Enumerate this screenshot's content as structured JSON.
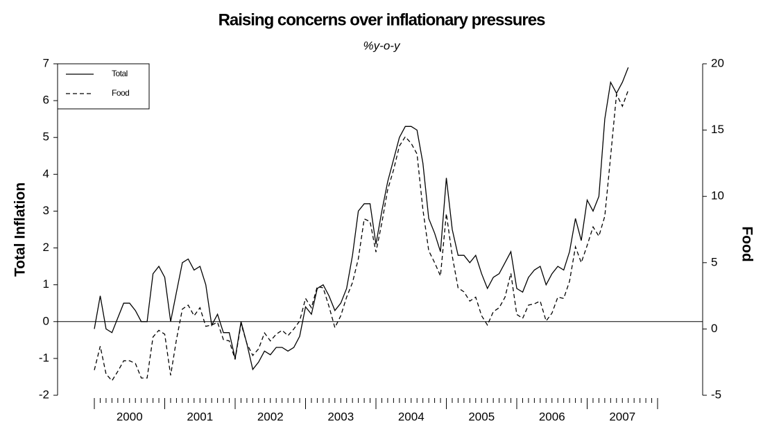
{
  "chart_data": {
    "type": "line",
    "title": "Raising concerns over inflationary pressures",
    "subtitle": "%y-o-y",
    "y_label": "Total Inflation",
    "y2_label": "Food",
    "categories": [
      "2000",
      null,
      null,
      null,
      null,
      null,
      null,
      null,
      null,
      null,
      null,
      null,
      "2001",
      null,
      null,
      null,
      null,
      null,
      null,
      null,
      null,
      null,
      null,
      null,
      "2002",
      null,
      null,
      null,
      null,
      null,
      null,
      null,
      null,
      null,
      null,
      null,
      "2003",
      null,
      null,
      null,
      null,
      null,
      null,
      null,
      null,
      null,
      null,
      null,
      "2004",
      null,
      null,
      null,
      null,
      null,
      null,
      null,
      null,
      null,
      null,
      null,
      "2005",
      null,
      null,
      null,
      null,
      null,
      null,
      null,
      null,
      null,
      null,
      null,
      "2006",
      null,
      null,
      null,
      null,
      null,
      null,
      null,
      null,
      null,
      null,
      null,
      "2007",
      null,
      null,
      null,
      null,
      null,
      null,
      null
    ],
    "series": [
      {
        "name": "Total",
        "color": "#000000",
        "line_style": "solid",
        "axis": "y",
        "values": [
          -0.2,
          0.7,
          -0.2,
          -0.3,
          0.1,
          0.5,
          0.5,
          0.3,
          0.0,
          0.0,
          1.3,
          1.5,
          1.2,
          0.0,
          0.8,
          1.6,
          1.7,
          1.4,
          1.5,
          1.0,
          -0.1,
          0.2,
          -0.3,
          -0.3,
          -1.0,
          0.0,
          -0.6,
          -1.3,
          -1.1,
          -0.8,
          -0.9,
          -0.7,
          -0.7,
          -0.8,
          -0.7,
          -0.4,
          0.4,
          0.2,
          0.9,
          1.0,
          0.7,
          0.3,
          0.5,
          0.9,
          1.8,
          3.0,
          3.2,
          3.2,
          2.1,
          3.0,
          3.8,
          4.4,
          5.0,
          5.3,
          5.3,
          5.2,
          4.3,
          2.8,
          2.4,
          1.9,
          3.9,
          2.5,
          1.8,
          1.8,
          1.6,
          1.8,
          1.3,
          0.9,
          1.2,
          1.3,
          1.6,
          1.9,
          0.9,
          0.8,
          1.2,
          1.4,
          1.5,
          1.0,
          1.3,
          1.5,
          1.4,
          1.9,
          2.8,
          2.2,
          3.3,
          3.0,
          3.4,
          5.5,
          6.5,
          6.2,
          6.5,
          6.9
        ]
      },
      {
        "name": "Food",
        "color": "#000000",
        "line_style": "dashed",
        "axis": "y2",
        "values": [
          -3.1,
          -1.3,
          -3.4,
          -3.9,
          -3.2,
          -2.4,
          -2.4,
          -2.6,
          -3.7,
          -3.7,
          -0.6,
          -0.1,
          -0.4,
          -3.5,
          -0.8,
          1.5,
          1.8,
          1.0,
          1.6,
          0.2,
          0.3,
          0.5,
          -0.8,
          -0.9,
          -2.3,
          0.4,
          -1.1,
          -2.0,
          -1.5,
          -0.3,
          -0.9,
          -0.4,
          -0.1,
          -0.5,
          0.0,
          0.6,
          2.3,
          1.6,
          3.2,
          3.1,
          1.7,
          0.1,
          1.0,
          2.4,
          3.5,
          5.3,
          8.3,
          8.1,
          5.8,
          8.0,
          10.5,
          12.0,
          13.8,
          14.5,
          14.0,
          13.2,
          9.0,
          5.9,
          5.0,
          4.0,
          8.7,
          5.5,
          3.1,
          2.8,
          2.1,
          2.4,
          1.0,
          0.3,
          1.3,
          1.6,
          2.4,
          4.2,
          1.1,
          0.8,
          1.8,
          1.9,
          2.1,
          0.6,
          1.2,
          2.4,
          2.3,
          3.6,
          6.2,
          5.0,
          6.3,
          7.7,
          7.0,
          8.5,
          13.0,
          17.7,
          16.8,
          18.0
        ]
      }
    ],
    "ylim": [
      -2,
      7
    ],
    "yticks": [
      -2,
      -1,
      0,
      1,
      2,
      3,
      4,
      5,
      6,
      7
    ],
    "y2lim": [
      -5,
      20
    ],
    "y2ticks": [
      -5,
      0,
      5,
      10,
      15,
      20
    ],
    "zero_line": true,
    "legend": "top-left"
  }
}
